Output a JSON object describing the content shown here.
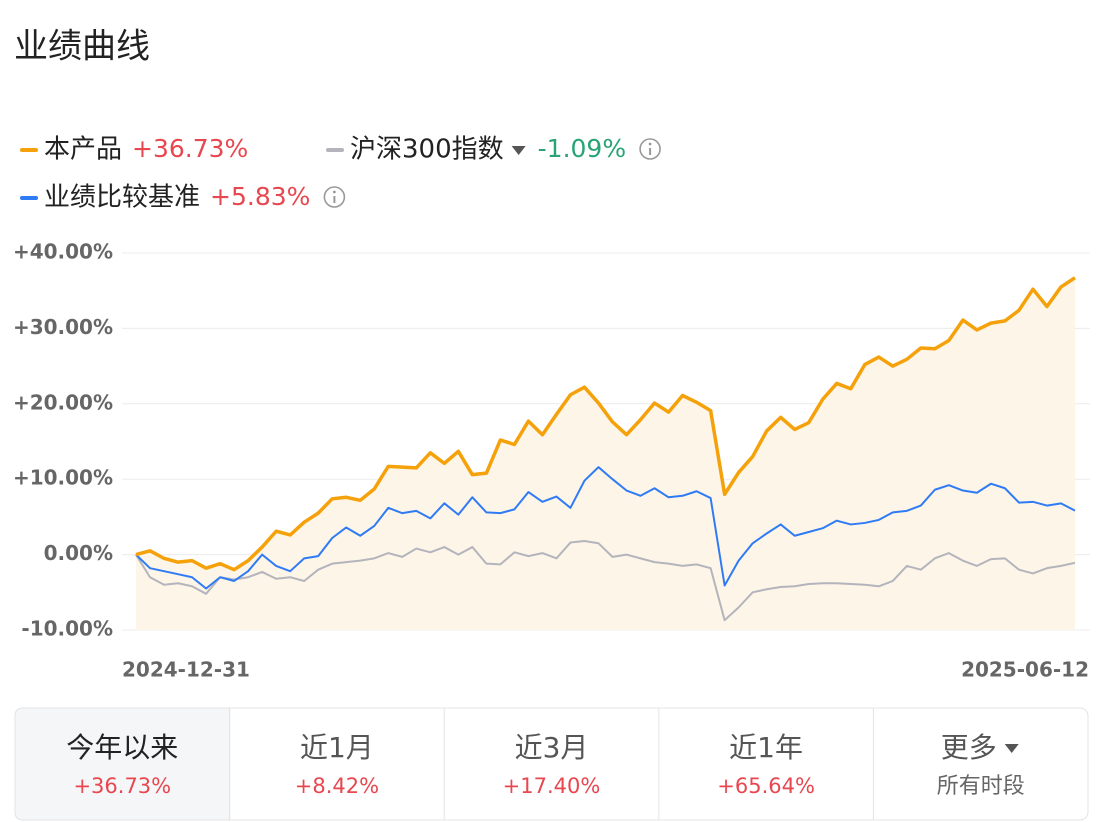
{
  "header": {
    "title": "业绩曲线"
  },
  "chart_data": {
    "type": "line",
    "categories": [
      "2024-12-31",
      null,
      null,
      null,
      null,
      null,
      null,
      null,
      null,
      null,
      null,
      null,
      null,
      null,
      null,
      null,
      null,
      null,
      null,
      null,
      null,
      null,
      null,
      null,
      null,
      null,
      null,
      null,
      null,
      null,
      null,
      null,
      null,
      null,
      null,
      null,
      null,
      null,
      null,
      null,
      null,
      null,
      null,
      null,
      null,
      null,
      null,
      null,
      null,
      null,
      null,
      null,
      null,
      null,
      null,
      null,
      null,
      null,
      null,
      null,
      null,
      null,
      null,
      null,
      null,
      null,
      null,
      "2025-06-12"
    ],
    "series": [
      {
        "name": "本产品",
        "color": "#f5a10a",
        "summary": "+36.73%",
        "values": [
          0,
          0.5,
          -0.5,
          -1,
          -0.8,
          -1.8,
          -1.2,
          -2,
          -0.8,
          1,
          3.1,
          2.6,
          4.3,
          5.5,
          7.4,
          7.6,
          7.2,
          8.7,
          11.7,
          11.6,
          11.5,
          13.5,
          12.1,
          13.7,
          10.6,
          10.8,
          15.2,
          14.6,
          17.7,
          15.9,
          18.6,
          21.2,
          22.2,
          20.1,
          17.6,
          15.9,
          17.9,
          20.1,
          18.9,
          21.1,
          20.2,
          19.1,
          8,
          10.9,
          13,
          16.4,
          18.2,
          16.6,
          17.5,
          20.6,
          22.7,
          22,
          25.2,
          26.2,
          25,
          25.9,
          27.4,
          27.3,
          28.4,
          31.1,
          29.8,
          30.7,
          31,
          32.4,
          35.2,
          32.9,
          35.5,
          36.73
        ]
      },
      {
        "name": "沪深300指数",
        "color": "#b4b4bc",
        "summary": "-1.09%",
        "values": [
          0,
          -3,
          -4,
          -3.8,
          -4.2,
          -5.2,
          -3,
          -3.3,
          -3,
          -2.3,
          -3.2,
          -3,
          -3.5,
          -2,
          -1.2,
          -1,
          -0.8,
          -0.5,
          0.2,
          -0.3,
          0.8,
          0.3,
          1,
          0,
          1,
          -1.2,
          -1.3,
          0.3,
          -0.2,
          0.2,
          -0.5,
          1.6,
          1.8,
          1.5,
          -0.3,
          0,
          -0.5,
          -1,
          -1.2,
          -1.5,
          -1.3,
          -1.8,
          -8.7,
          -7,
          -5,
          -4.6,
          -4.3,
          -4.2,
          -3.9,
          -3.8,
          -3.8,
          -3.9,
          -4,
          -4.2,
          -3.5,
          -1.5,
          -2,
          -0.5,
          0.2,
          -0.8,
          -1.5,
          -0.6,
          -0.5,
          -2,
          -2.5,
          -1.8,
          -1.5,
          -1.09
        ]
      },
      {
        "name": "业绩比较基准",
        "color": "#2f7bf5",
        "summary": "+5.83%",
        "values": [
          0,
          -1.8,
          -2.2,
          -2.6,
          -3,
          -4.5,
          -3,
          -3.5,
          -2.2,
          0,
          -1.5,
          -2.2,
          -0.5,
          -0.2,
          2.2,
          3.6,
          2.5,
          3.8,
          6.2,
          5.5,
          5.8,
          4.8,
          6.8,
          5.3,
          7.6,
          5.6,
          5.5,
          6,
          8.3,
          7,
          7.7,
          6.2,
          9.8,
          11.6,
          10,
          8.5,
          7.8,
          8.8,
          7.6,
          7.8,
          8.4,
          7.5,
          -4.1,
          -0.8,
          1.5,
          2.8,
          4,
          2.5,
          3,
          3.5,
          4.5,
          4,
          4.2,
          4.6,
          5.6,
          5.8,
          6.5,
          8.6,
          9.2,
          8.5,
          8.2,
          9.4,
          8.8,
          6.9,
          7,
          6.5,
          6.8,
          5.83
        ]
      }
    ],
    "ylim": [
      -10,
      40
    ],
    "yticks": [
      {
        "value": -10,
        "label": "-10.00%"
      },
      {
        "value": 0,
        "label": "0.00%"
      },
      {
        "value": 10,
        "label": "+10.00%"
      },
      {
        "value": 20,
        "label": "+20.00%"
      },
      {
        "value": 30,
        "label": "+30.00%"
      },
      {
        "value": 40,
        "label": "+40.00%"
      }
    ],
    "grid": true
  },
  "tabs": [
    {
      "label": "今年以来",
      "value": "+36.73%"
    },
    {
      "label": "近1月",
      "value": "+8.42%"
    },
    {
      "label": "近3月",
      "value": "+17.40%"
    },
    {
      "label": "近1年",
      "value": "+65.64%"
    },
    {
      "label": "更多",
      "value": "所有时段"
    }
  ]
}
